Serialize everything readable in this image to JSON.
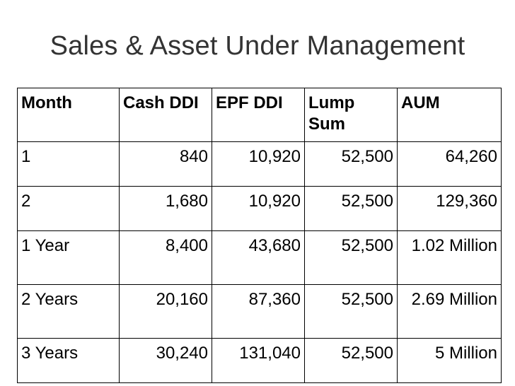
{
  "title": "Sales & Asset Under Management",
  "table": {
    "headers": [
      "Month",
      "Cash DDI",
      "EPF DDI",
      "Lump Sum",
      "AUM"
    ],
    "rows": [
      [
        "1",
        "840",
        "10,920",
        "52,500",
        "64,260"
      ],
      [
        "2",
        "1,680",
        "10,920",
        "52,500",
        "129,360"
      ],
      [
        "1 Year",
        "8,400",
        "43,680",
        "52,500",
        "1.02 Million"
      ],
      [
        "2 Years",
        "20,160",
        "87,360",
        "52,500",
        "2.69 Million"
      ],
      [
        "3 Years",
        "30,240",
        "131,040",
        "52,500",
        "5 Million"
      ]
    ]
  }
}
